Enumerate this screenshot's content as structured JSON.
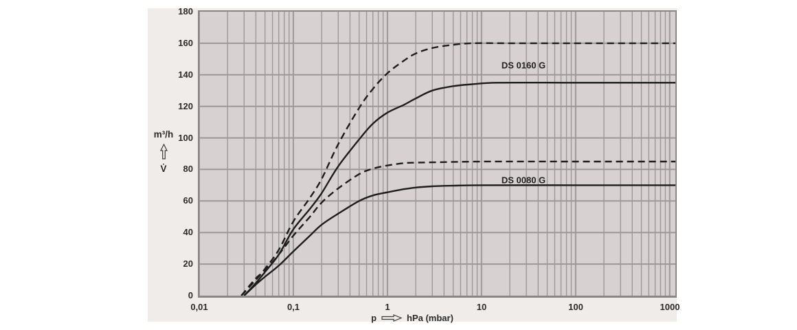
{
  "page": {
    "background": "#ffffff"
  },
  "panel": {
    "background": "#efecea"
  },
  "chart_data": {
    "type": "line",
    "title": "",
    "plot_background": "#d8d1d2",
    "grid": {
      "color": "#9c9799",
      "log_minor_lines": true,
      "legend": "none"
    },
    "curve_color": "#1d1d1d",
    "x_axis": {
      "scale": "log",
      "min": 0.01,
      "max": 1150,
      "quantity": "p",
      "unit": "hPa (mbar)",
      "ticks": [
        {
          "value": 0.01,
          "label": "0,01"
        },
        {
          "value": 0.1,
          "label": "0,1"
        },
        {
          "value": 1,
          "label": "1"
        },
        {
          "value": 10,
          "label": "10"
        },
        {
          "value": 100,
          "label": "100"
        },
        {
          "value": 1000,
          "label": "1000"
        }
      ]
    },
    "y_axis": {
      "min": 0,
      "max": 180,
      "tick_step": 20,
      "unit": "m³/h",
      "quantity": "V̇",
      "tick_labels": [
        "0",
        "20",
        "40",
        "60",
        "80",
        "100",
        "120",
        "140",
        "160",
        "180"
      ]
    },
    "series": [
      {
        "name": "DS 0160 G",
        "style": "dashed",
        "points": [
          [
            0.028,
            0
          ],
          [
            0.04,
            10
          ],
          [
            0.05,
            17
          ],
          [
            0.07,
            29
          ],
          [
            0.1,
            47
          ],
          [
            0.15,
            62
          ],
          [
            0.2,
            74
          ],
          [
            0.3,
            96
          ],
          [
            0.5,
            119
          ],
          [
            0.7,
            131
          ],
          [
            1,
            141
          ],
          [
            1.5,
            149
          ],
          [
            2,
            153.5
          ],
          [
            3,
            157
          ],
          [
            5,
            159
          ],
          [
            8,
            160
          ],
          [
            20,
            160
          ],
          [
            100,
            160
          ],
          [
            1150,
            160
          ]
        ]
      },
      {
        "name": "DS 0160 G",
        "style": "solid",
        "points": [
          [
            0.03,
            0
          ],
          [
            0.04,
            8
          ],
          [
            0.05,
            15
          ],
          [
            0.07,
            26
          ],
          [
            0.1,
            42
          ],
          [
            0.15,
            55
          ],
          [
            0.2,
            65
          ],
          [
            0.3,
            82
          ],
          [
            0.5,
            99
          ],
          [
            0.7,
            109
          ],
          [
            1,
            116
          ],
          [
            1.5,
            121
          ],
          [
            2,
            125
          ],
          [
            3,
            130
          ],
          [
            5,
            132.8
          ],
          [
            8,
            134
          ],
          [
            15,
            135
          ],
          [
            100,
            135
          ],
          [
            1150,
            135
          ]
        ]
      },
      {
        "name": "DS 0080 G",
        "style": "dashed",
        "points": [
          [
            0.028,
            0
          ],
          [
            0.04,
            11
          ],
          [
            0.05,
            16
          ],
          [
            0.07,
            26
          ],
          [
            0.1,
            38
          ],
          [
            0.15,
            50
          ],
          [
            0.2,
            59
          ],
          [
            0.3,
            68
          ],
          [
            0.5,
            77
          ],
          [
            0.7,
            80.5
          ],
          [
            1,
            82.5
          ],
          [
            1.5,
            84
          ],
          [
            2,
            84.3
          ],
          [
            3,
            84.5
          ],
          [
            10,
            85
          ],
          [
            100,
            85
          ],
          [
            1150,
            85
          ]
        ]
      },
      {
        "name": "DS 0080 G",
        "style": "solid",
        "points": [
          [
            0.03,
            0
          ],
          [
            0.04,
            7
          ],
          [
            0.05,
            12
          ],
          [
            0.07,
            19
          ],
          [
            0.1,
            28
          ],
          [
            0.15,
            38
          ],
          [
            0.2,
            45
          ],
          [
            0.3,
            52
          ],
          [
            0.5,
            60
          ],
          [
            0.7,
            63.5
          ],
          [
            1,
            65.5
          ],
          [
            1.5,
            67.5
          ],
          [
            2,
            68.5
          ],
          [
            3,
            69.3
          ],
          [
            5,
            69.7
          ],
          [
            10,
            70
          ],
          [
            100,
            70
          ],
          [
            1150,
            70
          ]
        ]
      }
    ],
    "curve_labels": [
      {
        "text": "DS 0160 G",
        "x": 27,
        "y": 147
      },
      {
        "text": "DS 0080 G",
        "x": 27,
        "y": 74
      }
    ]
  }
}
